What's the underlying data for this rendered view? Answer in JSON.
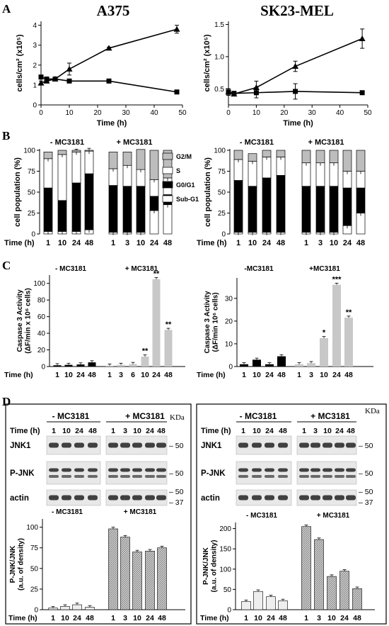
{
  "figure": {
    "panel_labels": {
      "a": "A",
      "b": "B",
      "c": "C",
      "d": "D"
    },
    "col_titles": {
      "left": "A375",
      "right": "SK23-MEL"
    },
    "time_label": "Time (h)",
    "minus_label": "- MC3181",
    "plus_label": "+ MC3181",
    "minus_label_c2": "-MC3181",
    "plus_label_c2": "+MC3181",
    "kda_label": "KDa",
    "blots": {
      "names": [
        "JNK1",
        "P-JNK",
        "actin"
      ],
      "markers": {
        "m50": "50",
        "m37": "37"
      }
    }
  },
  "chart_data": [
    {
      "id": "A_left",
      "type": "line",
      "title": "A375",
      "xlabel": "Time (h)",
      "ylabel": "cells/cm² (x10⁵)",
      "xlim": [
        0,
        50
      ],
      "ylim": [
        0,
        4.2
      ],
      "xticks": [
        0,
        10,
        20,
        30,
        40,
        50
      ],
      "yticks": [
        0,
        1,
        2,
        3,
        4
      ],
      "series": [
        {
          "marker": "triangle",
          "x": [
            0,
            2,
            5,
            10,
            24,
            48
          ],
          "y": [
            1.1,
            1.2,
            1.3,
            1.8,
            2.85,
            3.8
          ],
          "err": [
            0.1,
            0.1,
            0.1,
            0.3,
            0.05,
            0.2
          ]
        },
        {
          "marker": "square",
          "x": [
            0,
            2,
            5,
            10,
            24,
            48
          ],
          "y": [
            1.4,
            1.3,
            1.3,
            1.2,
            1.2,
            0.65
          ],
          "err": [
            0.05,
            0.05,
            0.05,
            0.05,
            0.1,
            0.05
          ]
        }
      ]
    },
    {
      "id": "A_right",
      "type": "line",
      "title": "SK23-MEL",
      "xlabel": "Time (h)",
      "ylabel": "cells/cm² (x10⁵)",
      "xlim": [
        0,
        50
      ],
      "ylim": [
        0.25,
        1.55
      ],
      "xticks": [
        0,
        10,
        20,
        30,
        40,
        50
      ],
      "yticks": [
        0.5,
        1.0,
        1.5
      ],
      "ytick_labels": [
        "0.5",
        "1.0",
        "1.5"
      ],
      "series": [
        {
          "marker": "triangle",
          "x": [
            0,
            2,
            10,
            24,
            48
          ],
          "y": [
            0.45,
            0.42,
            0.52,
            0.85,
            1.28
          ],
          "err": [
            0.05,
            0.03,
            0.1,
            0.08,
            0.15
          ]
        },
        {
          "marker": "square",
          "x": [
            0,
            2,
            10,
            24,
            48
          ],
          "y": [
            0.45,
            0.43,
            0.44,
            0.46,
            0.44
          ],
          "err": [
            0.05,
            0.03,
            0.08,
            0.12,
            0.02
          ]
        }
      ]
    },
    {
      "id": "B_left",
      "type": "bar",
      "ylabel": "cell population (%)",
      "ylim": [
        0,
        100
      ],
      "yticks": [
        0,
        25,
        50,
        75,
        100
      ],
      "groups": [
        {
          "categories": [
            "1",
            "10",
            "24",
            "48"
          ],
          "stacks": [
            [
              3,
              52,
              35,
              8
            ],
            [
              3,
              37,
              55,
              5
            ],
            [
              3,
              58,
              37,
              2
            ],
            [
              5,
              67,
              27,
              1
            ]
          ]
        },
        {
          "categories": [
            "1",
            "3",
            "10",
            "24",
            "48"
          ],
          "stacks": [
            [
              2,
              56,
              20,
              20
            ],
            [
              2,
              55,
              25,
              16
            ],
            [
              2,
              55,
              20,
              24
            ],
            [
              28,
              17,
              20,
              35
            ],
            [
              35,
              12,
              20,
              33
            ]
          ]
        }
      ],
      "legend": [
        "G2/M",
        "S",
        "G0/G1",
        "Sub-G1"
      ]
    },
    {
      "id": "B_right",
      "type": "bar",
      "ylabel": "cell population (%)",
      "ylim": [
        0,
        100
      ],
      "yticks": [
        0,
        25,
        50,
        75,
        100
      ],
      "groups": [
        {
          "categories": [
            "1",
            "10",
            "24",
            "48"
          ],
          "stacks": [
            [
              2,
              62,
              25,
              11
            ],
            [
              2,
              55,
              30,
              9
            ],
            [
              2,
              65,
              25,
              8
            ],
            [
              2,
              68,
              22,
              8
            ]
          ]
        },
        {
          "categories": [
            "1",
            "3",
            "10",
            "24",
            "48"
          ],
          "stacks": [
            [
              2,
              55,
              28,
              15
            ],
            [
              2,
              55,
              28,
              15
            ],
            [
              2,
              55,
              28,
              15
            ],
            [
              10,
              45,
              20,
              25
            ],
            [
              25,
              30,
              20,
              25
            ]
          ]
        }
      ]
    },
    {
      "id": "C_left",
      "type": "bar",
      "ylabel": "Caspase 3 Activity (ΔF/min x 10⁶ cells)",
      "ylim": [
        0,
        110
      ],
      "yticks": [
        0,
        20,
        40,
        60,
        80,
        100
      ],
      "groups": [
        {
          "categories": [
            "1",
            "10",
            "24",
            "48"
          ],
          "values": [
            1.5,
            2,
            2.5,
            5
          ]
        },
        {
          "categories": [
            "1",
            "3",
            "6",
            "10",
            "24",
            "48"
          ],
          "values": [
            1,
            2,
            3,
            12,
            105,
            44
          ],
          "stars": [
            "",
            "",
            "",
            "**",
            "**",
            "**"
          ]
        }
      ]
    },
    {
      "id": "C_right",
      "type": "bar",
      "ylabel": "Caspase 3 Activity (ΔF/min 10⁶ cells)",
      "ylim": [
        0,
        39
      ],
      "yticks": [
        0,
        10,
        20,
        30
      ],
      "groups": [
        {
          "categories": [
            "1",
            "10",
            "24",
            "48"
          ],
          "values": [
            1,
            3,
            1,
            4.5
          ]
        },
        {
          "categories": [
            "1",
            "3",
            "10",
            "24",
            "48"
          ],
          "values": [
            1,
            1.5,
            12.5,
            36,
            21.5
          ],
          "stars": [
            "",
            "",
            "*",
            "***",
            "**"
          ]
        }
      ]
    },
    {
      "id": "D_left",
      "type": "bar",
      "ylabel": "P-JNK/JNK (a.u. of density)",
      "ylim": [
        0,
        110
      ],
      "yticks": [
        0,
        25,
        50,
        75,
        100
      ],
      "groups": [
        {
          "categories": [
            "1",
            "10",
            "24",
            "48"
          ],
          "values": [
            2,
            4,
            6,
            3
          ]
        },
        {
          "categories": [
            "1",
            "3",
            "10",
            "24",
            "48"
          ],
          "values": [
            98,
            88,
            70,
            71,
            75
          ]
        }
      ]
    },
    {
      "id": "D_right",
      "type": "bar",
      "ylabel": "P-JNK/JNK (a.u. of density)",
      "ylim": [
        0,
        215
      ],
      "yticks": [
        0,
        50,
        100,
        150,
        200
      ],
      "groups": [
        {
          "categories": [
            "1",
            "10",
            "24",
            "48"
          ],
          "values": [
            20,
            45,
            32,
            22
          ]
        },
        {
          "categories": [
            "1",
            "3",
            "10",
            "24",
            "48"
          ],
          "values": [
            205,
            173,
            82,
            95,
            52
          ]
        }
      ]
    }
  ]
}
